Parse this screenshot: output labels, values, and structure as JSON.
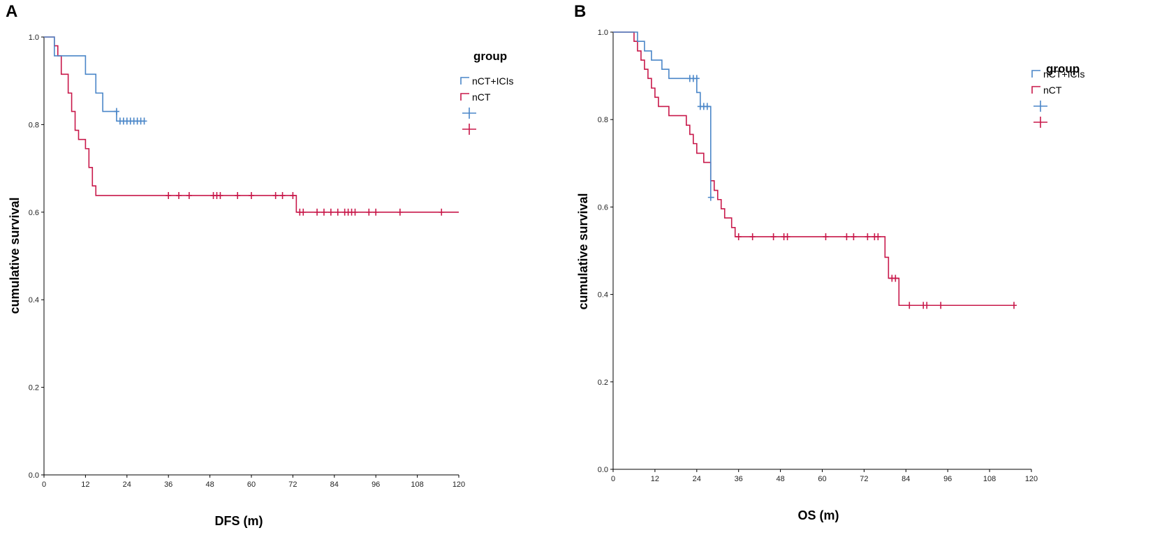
{
  "colors": {
    "nct_ici": "#4a86c8",
    "nct": "#c8184a",
    "axis": "#000000"
  },
  "chart_data": [
    {
      "panel": "A",
      "type": "line",
      "subtype": "kaplan-meier",
      "xlabel": "DFS (m)",
      "ylabel": "cumulative survival",
      "xlim": [
        0,
        120
      ],
      "ylim": [
        0,
        1.0
      ],
      "xticks": [
        "0",
        "12",
        "24",
        "36",
        "48",
        "60",
        "72",
        "84",
        "96",
        "108",
        "120"
      ],
      "yticks": [
        "0.0",
        "0.2",
        "0.4",
        "0.6",
        "0.8",
        "1.0"
      ],
      "legend": {
        "title": "group",
        "entries": [
          "nCT+ICIs",
          "nCT",
          "",
          ""
        ]
      },
      "series": [
        {
          "name": "nCT+ICIs",
          "color_key": "nct_ici",
          "steps": [
            [
              0,
              1.0
            ],
            [
              3,
              0.957
            ],
            [
              12,
              0.915
            ],
            [
              15,
              0.872
            ],
            [
              17,
              0.83
            ],
            [
              21,
              0.808
            ]
          ],
          "end_x": 29,
          "censor": [
            [
              21,
              0.83
            ],
            [
              22,
              0.808
            ],
            [
              23,
              0.808
            ],
            [
              24,
              0.808
            ],
            [
              25,
              0.808
            ],
            [
              26,
              0.808
            ],
            [
              27,
              0.808
            ],
            [
              28,
              0.808
            ],
            [
              29,
              0.808
            ]
          ]
        },
        {
          "name": "nCT",
          "color_key": "nct",
          "steps": [
            [
              0,
              1.0
            ],
            [
              3,
              0.98
            ],
            [
              4,
              0.957
            ],
            [
              5,
              0.915
            ],
            [
              7,
              0.872
            ],
            [
              8,
              0.83
            ],
            [
              9,
              0.787
            ],
            [
              10,
              0.766
            ],
            [
              12,
              0.745
            ],
            [
              13,
              0.702
            ],
            [
              14,
              0.66
            ],
            [
              15,
              0.638
            ],
            [
              73,
              0.6
            ]
          ],
          "end_x": 120,
          "censor": [
            [
              36,
              0.638
            ],
            [
              39,
              0.638
            ],
            [
              42,
              0.638
            ],
            [
              49,
              0.638
            ],
            [
              50,
              0.638
            ],
            [
              51,
              0.638
            ],
            [
              56,
              0.638
            ],
            [
              60,
              0.638
            ],
            [
              67,
              0.638
            ],
            [
              69,
              0.638
            ],
            [
              72,
              0.638
            ],
            [
              74,
              0.6
            ],
            [
              75,
              0.6
            ],
            [
              79,
              0.6
            ],
            [
              81,
              0.6
            ],
            [
              83,
              0.6
            ],
            [
              85,
              0.6
            ],
            [
              87,
              0.6
            ],
            [
              88,
              0.6
            ],
            [
              89,
              0.6
            ],
            [
              90,
              0.6
            ],
            [
              94,
              0.6
            ],
            [
              96,
              0.6
            ],
            [
              103,
              0.6
            ],
            [
              115,
              0.6
            ]
          ]
        }
      ]
    },
    {
      "panel": "B",
      "type": "line",
      "subtype": "kaplan-meier",
      "xlabel": "OS (m)",
      "ylabel": "cumulative survival",
      "xlim": [
        0,
        120
      ],
      "ylim": [
        0,
        1.0
      ],
      "xticks": [
        "0",
        "12",
        "24",
        "36",
        "48",
        "60",
        "72",
        "84",
        "96",
        "108",
        "120"
      ],
      "yticks": [
        "0.0",
        "0.2",
        "0.4",
        "0.6",
        "0.8",
        "1.0"
      ],
      "legend": {
        "title": "group",
        "entries": [
          "nCT+ICIs",
          "nCT",
          "",
          ""
        ]
      },
      "series": [
        {
          "name": "nCT+ICIs",
          "color_key": "nct_ici",
          "steps": [
            [
              0,
              1.0
            ],
            [
              7,
              0.979
            ],
            [
              9,
              0.957
            ],
            [
              11,
              0.936
            ],
            [
              14,
              0.915
            ],
            [
              16,
              0.894
            ],
            [
              24,
              0.862
            ],
            [
              25,
              0.83
            ],
            [
              28,
              0.622
            ]
          ],
          "end_x": 29,
          "censor": [
            [
              22,
              0.894
            ],
            [
              23,
              0.894
            ],
            [
              24,
              0.894
            ],
            [
              25,
              0.83
            ],
            [
              26,
              0.83
            ],
            [
              27,
              0.83
            ],
            [
              28,
              0.622
            ]
          ]
        },
        {
          "name": "nCT",
          "color_key": "nct",
          "steps": [
            [
              0,
              1.0
            ],
            [
              6,
              0.979
            ],
            [
              7,
              0.957
            ],
            [
              8,
              0.936
            ],
            [
              9,
              0.915
            ],
            [
              10,
              0.894
            ],
            [
              11,
              0.872
            ],
            [
              12,
              0.851
            ],
            [
              13,
              0.83
            ],
            [
              16,
              0.809
            ],
            [
              21,
              0.787
            ],
            [
              22,
              0.766
            ],
            [
              23,
              0.745
            ],
            [
              24,
              0.723
            ],
            [
              26,
              0.702
            ],
            [
              28,
              0.66
            ],
            [
              29,
              0.638
            ],
            [
              30,
              0.617
            ],
            [
              31,
              0.596
            ],
            [
              32,
              0.575
            ],
            [
              34,
              0.553
            ],
            [
              35,
              0.532
            ],
            [
              78,
              0.485
            ],
            [
              79,
              0.437
            ],
            [
              82,
              0.375
            ]
          ],
          "end_x": 115,
          "censor": [
            [
              36,
              0.532
            ],
            [
              40,
              0.532
            ],
            [
              46,
              0.532
            ],
            [
              49,
              0.532
            ],
            [
              50,
              0.532
            ],
            [
              61,
              0.532
            ],
            [
              67,
              0.532
            ],
            [
              69,
              0.532
            ],
            [
              73,
              0.532
            ],
            [
              75,
              0.532
            ],
            [
              76,
              0.532
            ],
            [
              80,
              0.437
            ],
            [
              81,
              0.437
            ],
            [
              85,
              0.375
            ],
            [
              89,
              0.375
            ],
            [
              90,
              0.375
            ],
            [
              94,
              0.375
            ],
            [
              115,
              0.375
            ]
          ]
        }
      ]
    }
  ]
}
